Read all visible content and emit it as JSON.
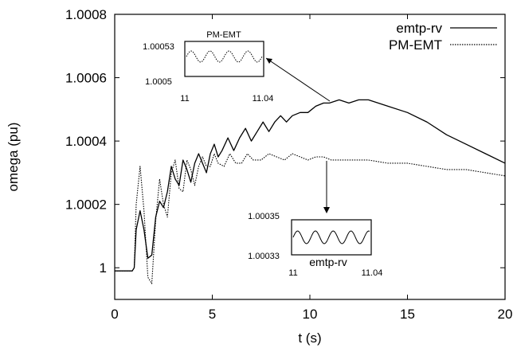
{
  "chart_data": {
    "type": "line",
    "title": "",
    "xlabel": "t (s)",
    "ylabel": "omega (pu)",
    "xlim": [
      0,
      20
    ],
    "ylim": [
      0.9999,
      1.0008
    ],
    "x_ticks": [
      "0",
      "5",
      "10",
      "15",
      "20"
    ],
    "y_ticks": [
      "1",
      "1.0002",
      "1.0004",
      "1.0006",
      "1.0008"
    ],
    "grid": false,
    "legend_position": "top-right",
    "series": [
      {
        "name": "emtp-rv",
        "style": "solid",
        "x": [
          0,
          0.9,
          1.0,
          1.1,
          1.3,
          1.5,
          1.7,
          1.9,
          2.1,
          2.3,
          2.5,
          2.7,
          2.9,
          3.1,
          3.3,
          3.5,
          3.7,
          3.9,
          4.1,
          4.3,
          4.5,
          4.7,
          4.9,
          5.1,
          5.3,
          5.5,
          5.8,
          6.1,
          6.4,
          6.7,
          7.0,
          7.3,
          7.6,
          7.9,
          8.2,
          8.5,
          8.8,
          9.1,
          9.5,
          9.9,
          10.3,
          10.7,
          11.0,
          11.5,
          12.0,
          12.5,
          13.0,
          13.5,
          14.0,
          15.0,
          16.0,
          17.0,
          18.0,
          19.0,
          20.0
        ],
        "values": [
          0.99999,
          0.99999,
          1.0,
          1.00012,
          1.00018,
          1.00012,
          1.00003,
          1.00004,
          1.00016,
          1.00021,
          1.00019,
          1.00024,
          1.00032,
          1.00028,
          1.00026,
          1.00034,
          1.00031,
          1.00027,
          1.00033,
          1.00036,
          1.00033,
          1.0003,
          1.00036,
          1.00039,
          1.00035,
          1.00037,
          1.00041,
          1.00037,
          1.00041,
          1.00044,
          1.0004,
          1.00043,
          1.00046,
          1.00043,
          1.00046,
          1.00048,
          1.00046,
          1.00048,
          1.00049,
          1.00049,
          1.00051,
          1.00052,
          1.00052,
          1.00053,
          1.00052,
          1.00053,
          1.00053,
          1.00052,
          1.00051,
          1.00049,
          1.00046,
          1.00042,
          1.00039,
          1.00036,
          1.00033
        ]
      },
      {
        "name": "PM-EMT",
        "style": "dotted",
        "x": [
          0,
          0.9,
          1.0,
          1.1,
          1.3,
          1.5,
          1.7,
          1.9,
          2.1,
          2.3,
          2.5,
          2.7,
          2.9,
          3.1,
          3.3,
          3.5,
          3.7,
          3.9,
          4.1,
          4.3,
          4.5,
          4.7,
          4.9,
          5.1,
          5.3,
          5.6,
          5.9,
          6.2,
          6.5,
          6.8,
          7.1,
          7.5,
          7.9,
          8.3,
          8.7,
          9.1,
          9.5,
          9.9,
          10.3,
          10.7,
          11.1,
          11.5,
          12.0,
          13.0,
          14.0,
          15.0,
          16.0,
          17.0,
          18.0,
          19.0,
          20.0
        ],
        "values": [
          0.99999,
          0.99999,
          1.0,
          1.0002,
          1.00032,
          1.00018,
          0.99997,
          0.99995,
          1.00015,
          1.00028,
          1.0002,
          1.00016,
          1.0003,
          1.00034,
          1.00025,
          1.00024,
          1.00034,
          1.00031,
          1.00026,
          1.00032,
          1.00035,
          1.00032,
          1.00032,
          1.00036,
          1.00033,
          1.00032,
          1.00036,
          1.00033,
          1.00033,
          1.00036,
          1.00034,
          1.00034,
          1.00036,
          1.00035,
          1.00034,
          1.00036,
          1.00035,
          1.00034,
          1.00035,
          1.00035,
          1.00034,
          1.00034,
          1.00034,
          1.00034,
          1.00033,
          1.00033,
          1.00032,
          1.00031,
          1.00031,
          1.0003,
          1.00029
        ]
      }
    ],
    "insets": [
      {
        "title": "PM-EMT",
        "y_tick_top": "1.00053",
        "y_tick_bottom": "1.0005",
        "x_tick_left": "11",
        "x_tick_right": "11.04",
        "style": "dotted"
      },
      {
        "title": "emtp-rv",
        "y_tick_top": "1.00035",
        "y_tick_bottom": "1.00033",
        "x_tick_left": "11",
        "x_tick_right": "11.04",
        "style": "solid"
      }
    ]
  }
}
